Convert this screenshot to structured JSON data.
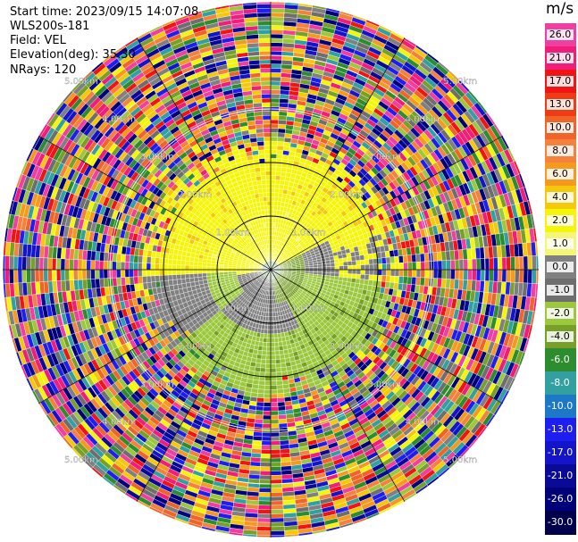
{
  "header": {
    "start_time": "Start time: 2023/09/15 14:07:08",
    "instrument": "WLS200s-181",
    "field": "Field: VEL",
    "elevation": "Elevation(deg): 35.30",
    "nrays": "NRays: 120"
  },
  "colorbar": {
    "unit": "m/s",
    "levels": [
      "26.0",
      "21.0",
      "17.0",
      "13.0",
      "10.0",
      "8.0",
      "6.0",
      "4.0",
      "2.0",
      "1.0",
      "0.0",
      "-1.0",
      "-2.0",
      "-4.0",
      "-6.0",
      "-8.0",
      "-10.0",
      "-13.0",
      "-17.0",
      "-21.0",
      "-26.0",
      "-30.0"
    ],
    "colors": [
      "#f03fa0",
      "#f01e78",
      "#f01414",
      "#f03c14",
      "#f06428",
      "#f5823c",
      "#f59a1e",
      "#f5c80a",
      "#f5f50a",
      "#f5f578",
      "#808080",
      "#6e6e6e",
      "#9bc83c",
      "#78a028",
      "#2d8c2d",
      "#32a0a0",
      "#1e78c8",
      "#1e1ef0",
      "#1414c8",
      "#0a0a96",
      "#000078",
      "#00004b"
    ]
  },
  "range_labels": [
    {
      "text": "1.00km"
    },
    {
      "text": "1.00km"
    },
    {
      "text": "1.00km"
    },
    {
      "text": "1.00km"
    },
    {
      "text": "2.00km"
    },
    {
      "text": "2.00km"
    },
    {
      "text": "2.00km"
    },
    {
      "text": "2.00km"
    },
    {
      "text": "3.00km"
    },
    {
      "text": "3.00km"
    },
    {
      "text": "3.00km"
    },
    {
      "text": "3.00km"
    },
    {
      "text": "4.00km"
    },
    {
      "text": "4.00km"
    },
    {
      "text": "4.00km"
    },
    {
      "text": "4.00km"
    },
    {
      "text": "5.00km"
    },
    {
      "text": "5.00km"
    },
    {
      "text": "5.00km"
    },
    {
      "text": "5.00km"
    }
  ]
}
